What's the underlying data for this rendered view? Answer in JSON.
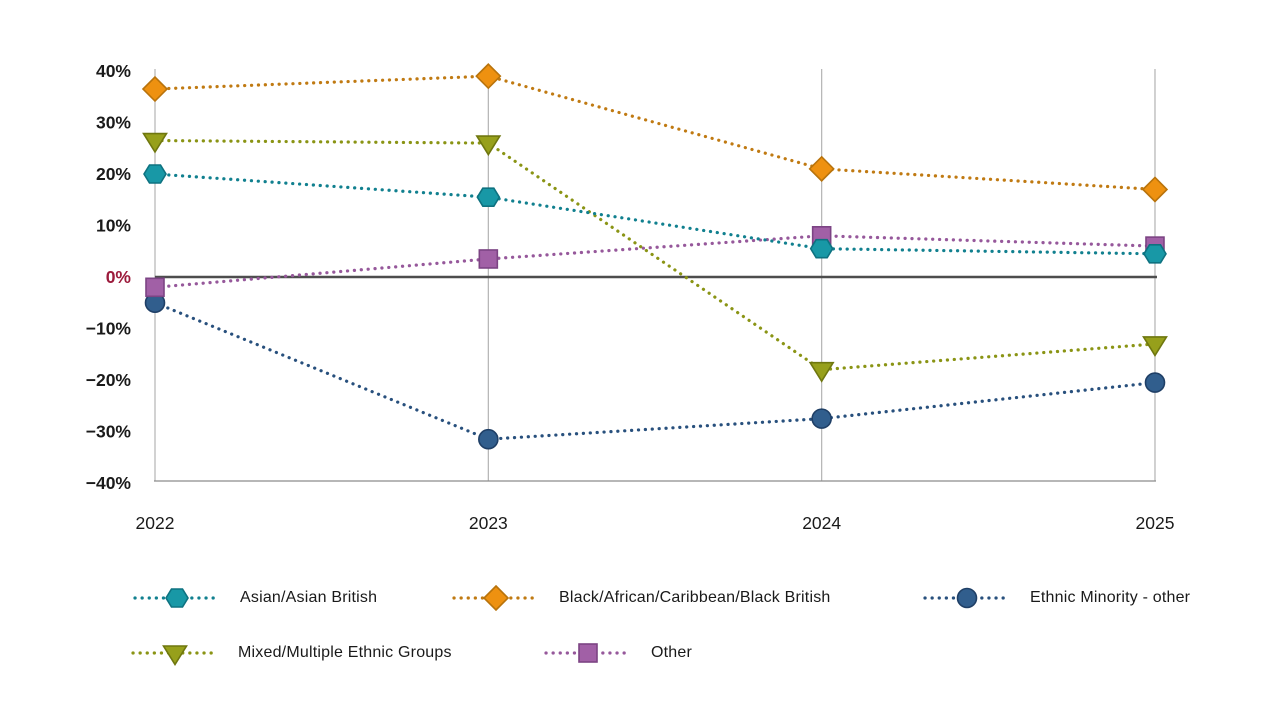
{
  "page": {
    "background": "#ffffff"
  },
  "chart_data": {
    "type": "line",
    "title": "",
    "subtitle": "",
    "xlabel": "",
    "ylabel": "",
    "x_labels": [
      "2022",
      "2023",
      "2024",
      "2025"
    ],
    "ylim": [
      -40,
      40
    ],
    "y_ticks": [
      {
        "label": "40%",
        "value": 40,
        "color": "#1a1a1a"
      },
      {
        "label": "30%",
        "value": 30,
        "color": "#1a1a1a"
      },
      {
        "label": "20%",
        "value": 20,
        "color": "#1a1a1a"
      },
      {
        "label": "10%",
        "value": 10,
        "color": "#1a1a1a"
      },
      {
        "label": "0%",
        "value": 0,
        "color": "#9c1b3c"
      },
      {
        "label": "−10%",
        "value": -10,
        "color": "#1a1a1a"
      },
      {
        "label": "−20%",
        "value": -20,
        "color": "#1a1a1a"
      },
      {
        "label": "−30%",
        "value": -30,
        "color": "#1a1a1a"
      },
      {
        "label": "−40%",
        "value": -40,
        "color": "#1a1a1a"
      }
    ],
    "grid": "vertical gridline at each year; emphasized horizontal zero line; bottom axis line",
    "line_style": "dotted",
    "legend_position": "bottom, two rows",
    "series": [
      {
        "name": "Asian/Asian British",
        "marker": "hexagon",
        "color": "#1898a6",
        "edge_color": "#0e7280",
        "line_color": "#11808f",
        "values": [
          20,
          15.5,
          5.5,
          4.5
        ]
      },
      {
        "name": "Black/African/Caribbean/Black British",
        "marker": "diamond",
        "color": "#ee9110",
        "edge_color": "#b8730c",
        "line_color": "#c07a12",
        "values": [
          36.5,
          39,
          21,
          17
        ]
      },
      {
        "name": "Ethnic Minority - other",
        "marker": "circle",
        "color": "#315e8d",
        "edge_color": "#1f3f66",
        "line_color": "#28507d",
        "values": [
          -5,
          -31.5,
          -27.5,
          -20.5
        ]
      },
      {
        "name": "Mixed/Multiple Ethnic Groups",
        "marker": "triangle-down",
        "color": "#97a01b",
        "edge_color": "#6f770f",
        "line_color": "#8a9414",
        "values": [
          26.5,
          26,
          -18,
          -13
        ]
      },
      {
        "name": "Other",
        "marker": "square",
        "color": "#a160a6",
        "edge_color": "#7c4484",
        "line_color": "#96589b",
        "values": [
          -2,
          3.5,
          8,
          6
        ]
      }
    ],
    "zero_label_color": "#9c1b3c",
    "axis_colors": {
      "gridline": "#b3b3b3",
      "zero_line": "#4d4d4d",
      "bottom_axis": "#8c8c8c",
      "tick_text": "#1a1a1a"
    }
  }
}
